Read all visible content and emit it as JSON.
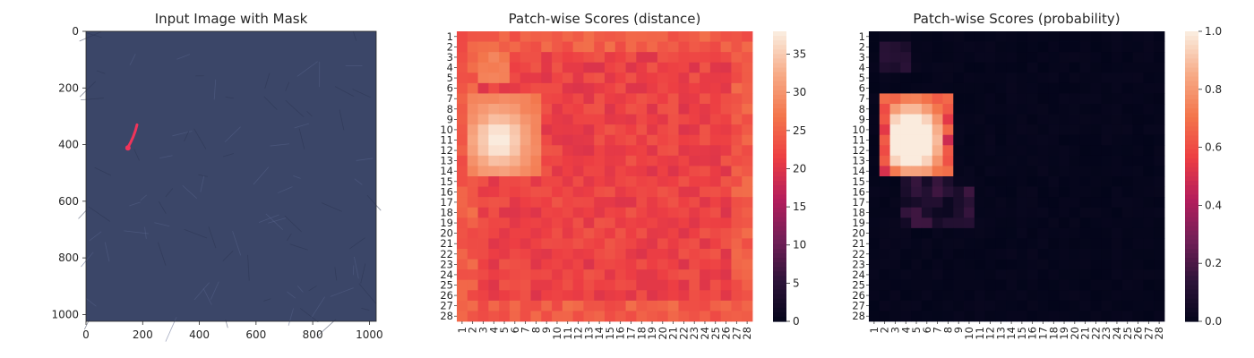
{
  "figure": {
    "colors": {
      "colormap": [
        "#03051a",
        "#2c1338",
        "#711f57",
        "#b41d5c",
        "#ed3e43",
        "#f3754b",
        "#f7aa86",
        "#faebdd"
      ]
    }
  },
  "panels": [
    {
      "title": "Input Image with Mask",
      "x_ticks": [
        "0",
        "200",
        "400",
        "600",
        "800",
        "1000"
      ],
      "y_ticks": [
        "0",
        "200",
        "400",
        "600",
        "800",
        "1000"
      ],
      "image_colors": {
        "background": "#3b4668",
        "mask": "#f0345a"
      }
    },
    {
      "title": "Patch-wise Scores (distance)",
      "tick_labels": [
        "1",
        "2",
        "3",
        "4",
        "5",
        "6",
        "7",
        "8",
        "9",
        "10",
        "11",
        "12",
        "13",
        "14",
        "15",
        "16",
        "17",
        "18",
        "19",
        "20",
        "21",
        "22",
        "23",
        "24",
        "25",
        "26",
        "27",
        "28"
      ],
      "colorbar": {
        "ticks": [
          "0",
          "5",
          "10",
          "15",
          "20",
          "25",
          "30",
          "35"
        ]
      }
    },
    {
      "title": "Patch-wise Scores (probability)",
      "tick_labels": [
        "1",
        "2",
        "3",
        "4",
        "5",
        "6",
        "7",
        "8",
        "9",
        "10",
        "11",
        "12",
        "13",
        "14",
        "15",
        "16",
        "17",
        "18",
        "19",
        "20",
        "21",
        "22",
        "23",
        "24",
        "25",
        "26",
        "27",
        "28"
      ],
      "colorbar": {
        "ticks": [
          "0.0",
          "0.2",
          "0.4",
          "0.6",
          "0.8",
          "1.0"
        ]
      }
    }
  ],
  "chart_data": [
    {
      "type": "image",
      "title": "Input Image with Mask",
      "xlim": [
        0,
        1024
      ],
      "ylim": [
        1024,
        0
      ],
      "mask_region": {
        "description": "red anomaly mask",
        "x": [
          145,
          180
        ],
        "y": [
          330,
          415
        ]
      }
    },
    {
      "type": "heatmap",
      "title": "Patch-wise Scores (distance)",
      "rows": 28,
      "cols": 28,
      "vmin": 0,
      "vmax": 38,
      "background_level": 22,
      "border_level": 25,
      "hotspot": {
        "rows": [
          7,
          14
        ],
        "cols": [
          2,
          8
        ],
        "peak": 38
      }
    },
    {
      "type": "heatmap",
      "title": "Patch-wise Scores (probability)",
      "rows": 28,
      "cols": 28,
      "vmin": 0,
      "vmax": 1,
      "background_level": 0.02,
      "hotspot": {
        "rows": [
          7,
          14
        ],
        "cols": [
          2,
          8
        ],
        "peak": 1.0
      }
    }
  ]
}
